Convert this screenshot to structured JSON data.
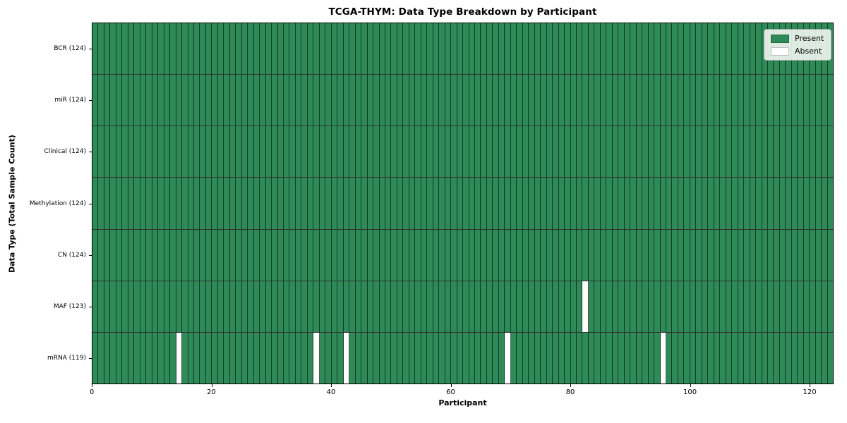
{
  "chart_data": {
    "type": "heatmap",
    "title": "TCGA-THYM: Data Type Breakdown by Participant",
    "xlabel": "Participant",
    "ylabel": "Data Type (Total Sample Count)",
    "xlim": [
      0,
      124
    ],
    "n_participants": 124,
    "x_ticks": [
      0,
      20,
      40,
      60,
      80,
      100,
      120
    ],
    "grid": false,
    "legend": {
      "position": "upper right",
      "items": [
        {
          "label": "Present",
          "color": "#2e8b57"
        },
        {
          "label": "Absent",
          "color": "#ffffff"
        }
      ]
    },
    "colors": {
      "present": "#2e8b57",
      "absent": "#ffffff",
      "cell_edge": "#16351f",
      "axes_edge": "#000000"
    },
    "rows": [
      {
        "label": "BCR (124)",
        "data_type": "BCR",
        "total_samples": 124,
        "absent_participants": []
      },
      {
        "label": "miR (124)",
        "data_type": "miR",
        "total_samples": 124,
        "absent_participants": []
      },
      {
        "label": "Clinical (124)",
        "data_type": "Clinical",
        "total_samples": 124,
        "absent_participants": []
      },
      {
        "label": "Methylation (124)",
        "data_type": "Methylation",
        "total_samples": 124,
        "absent_participants": []
      },
      {
        "label": "CN (124)",
        "data_type": "CN",
        "total_samples": 124,
        "absent_participants": []
      },
      {
        "label": "MAF (123)",
        "data_type": "MAF",
        "total_samples": 123,
        "absent_participants": [
          82
        ]
      },
      {
        "label": "mRNA (119)",
        "data_type": "mRNA",
        "total_samples": 119,
        "absent_participants": [
          14,
          37,
          42,
          69,
          95
        ]
      }
    ]
  }
}
